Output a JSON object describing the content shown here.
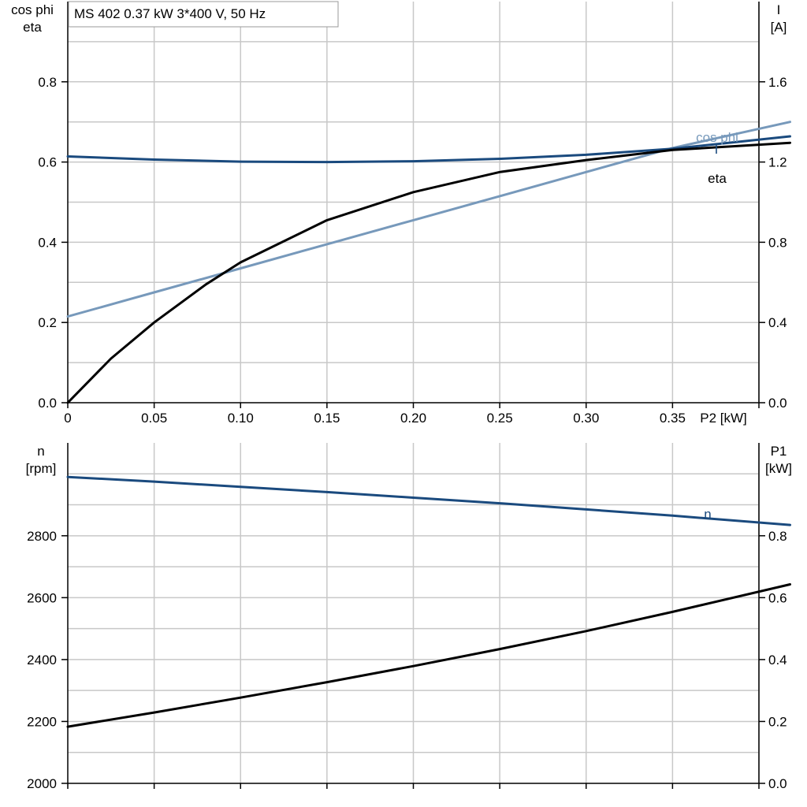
{
  "title": "MS 402   0.37 kW   3*400 V, 50 Hz",
  "colors": {
    "grid": "#c8c8c8",
    "axis": "#000000",
    "I": "#1a4a7e",
    "cos_phi": "#7799bb",
    "eta": "#000000",
    "n": "#1a4a7e",
    "P1": "#000000"
  },
  "chart_data": [
    {
      "type": "line",
      "name": "top",
      "x_label": "P2 [kW]",
      "x_range": [
        0,
        0.4
      ],
      "x_ticks": [
        0,
        0.05,
        0.1,
        0.15,
        0.2,
        0.25,
        0.3,
        0.35
      ],
      "x_tick_labels": [
        "0",
        "0.05",
        "0.10",
        "0.15",
        "0.20",
        "0.25",
        "0.30",
        "0.35"
      ],
      "left_axis": {
        "label_line1": "cos phi",
        "label_line2": "eta",
        "range": [
          0,
          1.0
        ],
        "ticks": [
          0,
          0.2,
          0.4,
          0.6,
          0.8
        ],
        "tick_labels": [
          "0.0",
          "0.2",
          "0.4",
          "0.6",
          "0.8"
        ]
      },
      "right_axis": {
        "label_line1": "I",
        "label_line2": "[A]",
        "range": [
          0,
          2.0
        ],
        "ticks": [
          0,
          0.4,
          0.8,
          1.2,
          1.6
        ],
        "tick_labels": [
          "0.0",
          "0.4",
          "0.8",
          "1.2",
          "1.6"
        ]
      },
      "series": [
        {
          "name": "cos phi",
          "axis": "left",
          "color_key": "cos_phi",
          "x": [
            0,
            0.05,
            0.1,
            0.15,
            0.2,
            0.25,
            0.3,
            0.35,
            0.418
          ],
          "y": [
            0.215,
            0.275,
            0.335,
            0.395,
            0.455,
            0.515,
            0.575,
            0.635,
            0.7
          ]
        },
        {
          "name": "I",
          "axis": "right",
          "color_key": "I",
          "x": [
            0,
            0.05,
            0.1,
            0.15,
            0.2,
            0.25,
            0.3,
            0.35,
            0.418
          ],
          "y": [
            1.228,
            1.212,
            1.202,
            1.2,
            1.204,
            1.216,
            1.236,
            1.266,
            1.328
          ]
        },
        {
          "name": "eta",
          "axis": "left",
          "color_key": "eta",
          "x": [
            0,
            0.025,
            0.05,
            0.08,
            0.1,
            0.15,
            0.2,
            0.25,
            0.3,
            0.35,
            0.418
          ],
          "y": [
            0,
            0.11,
            0.2,
            0.295,
            0.35,
            0.455,
            0.525,
            0.575,
            0.605,
            0.63,
            0.648
          ]
        }
      ]
    },
    {
      "type": "line",
      "name": "bottom",
      "x_range": [
        0,
        0.4
      ],
      "x_ticks": [
        0,
        0.05,
        0.1,
        0.15,
        0.2,
        0.25,
        0.3,
        0.35
      ],
      "left_axis": {
        "label_line1": "n",
        "label_line2": "[rpm]",
        "range": [
          2000,
          3100
        ],
        "ticks": [
          2000,
          2200,
          2400,
          2600,
          2800
        ],
        "tick_labels": [
          "2000",
          "2200",
          "2400",
          "2600",
          "2800"
        ]
      },
      "right_axis": {
        "label_line1": "P1",
        "label_line2": "[kW]",
        "range": [
          0,
          1.1
        ],
        "ticks": [
          0,
          0.2,
          0.4,
          0.6,
          0.8
        ],
        "tick_labels": [
          "0.0",
          "0.2",
          "0.4",
          "0.6",
          "0.8"
        ]
      },
      "series": [
        {
          "name": "n",
          "axis": "left",
          "color_key": "n",
          "x": [
            0,
            0.05,
            0.1,
            0.15,
            0.2,
            0.25,
            0.3,
            0.35,
            0.418
          ],
          "y": [
            2990,
            2975,
            2958,
            2941,
            2923,
            2905,
            2885,
            2865,
            2835
          ]
        },
        {
          "name": "",
          "axis": "right",
          "color_key": "P1",
          "x": [
            0,
            0.05,
            0.1,
            0.15,
            0.2,
            0.25,
            0.3,
            0.35,
            0.418
          ],
          "y": [
            0.183,
            0.229,
            0.277,
            0.327,
            0.379,
            0.434,
            0.492,
            0.554,
            0.643
          ]
        }
      ]
    }
  ]
}
